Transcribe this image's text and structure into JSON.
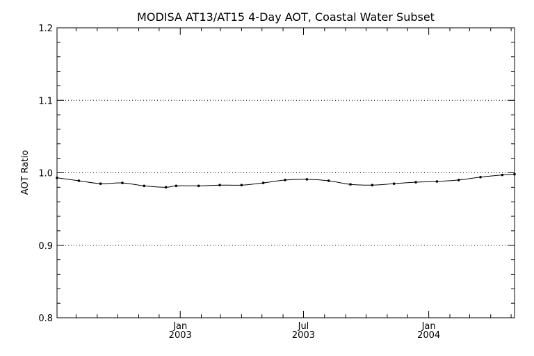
{
  "chart_data": {
    "type": "line",
    "title": "MODISA AT13/AT15 4-Day AOT, Coastal Water Subset",
    "xlabel": "",
    "ylabel": "AOT Ratio",
    "ylim": [
      0.8,
      1.2
    ],
    "xlim": [
      "2002-07-04",
      "2004-05-06"
    ],
    "y_ticks": [
      "0.8",
      "0.9",
      "1.0",
      "1.1",
      "1.2"
    ],
    "y_tick_values": [
      0.8,
      0.9,
      1.0,
      1.1,
      1.2
    ],
    "gridlines_y": [
      0.9,
      1.0,
      1.1
    ],
    "grid": "dotted horizontal at 0.9, 1.0, 1.1",
    "x_major_ticks": [
      {
        "date": "2003-01-01",
        "label_top": "Jan",
        "label_bottom": "2003"
      },
      {
        "date": "2003-07-01",
        "label_top": "Jul",
        "label_bottom": "2003"
      },
      {
        "date": "2004-01-01",
        "label_top": "Jan",
        "label_bottom": "2004"
      }
    ],
    "x_minor_ticks": [
      "2002-08-01",
      "2002-09-01",
      "2002-10-01",
      "2002-11-01",
      "2002-12-01",
      "2003-02-01",
      "2003-03-01",
      "2003-04-01",
      "2003-05-01",
      "2003-06-01",
      "2003-08-01",
      "2003-09-01",
      "2003-10-01",
      "2003-11-01",
      "2003-12-01",
      "2004-02-01",
      "2004-03-01",
      "2004-04-01",
      "2004-05-01"
    ],
    "series": [
      {
        "color": "#000000",
        "x": [
          "2002-07-04",
          "2002-08-05",
          "2002-09-06",
          "2002-10-08",
          "2002-11-09",
          "2002-12-11",
          "2002-12-26",
          "2003-01-28",
          "2003-02-28",
          "2003-04-01",
          "2003-05-03",
          "2003-06-04",
          "2003-07-06",
          "2003-08-07",
          "2003-09-08",
          "2003-10-10",
          "2003-11-11",
          "2003-12-13",
          "2004-01-13",
          "2004-02-14",
          "2004-03-17",
          "2004-04-18",
          "2004-05-06"
        ],
        "values": [
          0.993,
          0.989,
          0.985,
          0.986,
          0.982,
          0.98,
          0.982,
          0.982,
          0.983,
          0.983,
          0.986,
          0.99,
          0.991,
          0.989,
          0.984,
          0.983,
          0.985,
          0.987,
          0.988,
          0.99,
          0.994,
          0.997,
          0.998
        ]
      }
    ]
  }
}
